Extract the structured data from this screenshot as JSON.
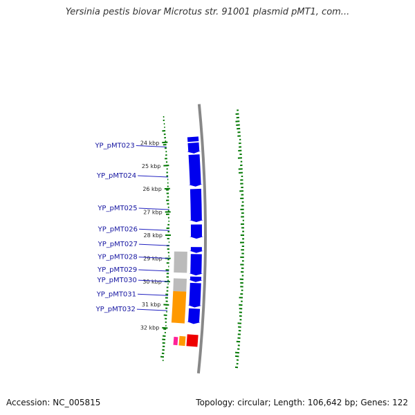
{
  "title": "Yersinia pestis biovar Microtus str. 91001 plasmid pMT1, com...",
  "accession_text": "Accession: NC_005815",
  "summary_text": "Topology: circular; Length: 106,642 bp; Genes: 122",
  "topology": "circular",
  "length_bp": 106642,
  "gene_count": 122,
  "colors": {
    "forward_cds": "#0000ee",
    "other_cds": "#bbbbbb",
    "orange_feature": "#ff9900",
    "backbone": "#888888",
    "gc_ticks": "#007700",
    "red_feature": "#ee0000",
    "magenta_feature": "#ff2299",
    "label": "#1414a0"
  },
  "ticks": [
    {
      "kbp": 24,
      "label": "24 kbp"
    },
    {
      "kbp": 25,
      "label": "25 kbp"
    },
    {
      "kbp": 26,
      "label": "26 kbp"
    },
    {
      "kbp": 27,
      "label": "27 kbp"
    },
    {
      "kbp": 28,
      "label": "28 kbp"
    },
    {
      "kbp": 29,
      "label": "29 kbp"
    },
    {
      "kbp": 30,
      "label": "30 kbp"
    },
    {
      "kbp": 31,
      "label": "31 kbp"
    },
    {
      "kbp": 32,
      "label": "32 kbp"
    }
  ],
  "genes": [
    {
      "label": "YP_pMT023",
      "kbp": 24.2
    },
    {
      "label": "YP_pMT024",
      "kbp": 25.5
    },
    {
      "label": "YP_pMT025",
      "kbp": 26.9
    },
    {
      "label": "YP_pMT026",
      "kbp": 27.8
    },
    {
      "label": "YP_pMT027",
      "kbp": 28.45
    },
    {
      "label": "YP_pMT028",
      "kbp": 29.0
    },
    {
      "label": "YP_pMT029",
      "kbp": 29.55
    },
    {
      "label": "YP_pMT030",
      "kbp": 30.0
    },
    {
      "label": "YP_pMT031",
      "kbp": 30.6
    },
    {
      "label": "YP_pMT032",
      "kbp": 31.25
    }
  ],
  "features": [
    {
      "ring": "forward",
      "start": 23.85,
      "end": 24.05,
      "color": "forward_cds",
      "arrow": false
    },
    {
      "ring": "forward",
      "start": 24.1,
      "end": 24.55,
      "color": "forward_cds",
      "arrow": true
    },
    {
      "ring": "forward",
      "start": 24.6,
      "end": 25.95,
      "color": "forward_cds",
      "arrow": true
    },
    {
      "ring": "forward",
      "start": 26.05,
      "end": 27.45,
      "color": "forward_cds",
      "arrow": true
    },
    {
      "ring": "forward",
      "start": 27.55,
      "end": 28.15,
      "color": "forward_cds",
      "arrow": true
    },
    {
      "ring": "forward",
      "start": 28.5,
      "end": 28.75,
      "color": "forward_cds",
      "arrow": true
    },
    {
      "ring": "forward",
      "start": 28.8,
      "end": 29.7,
      "color": "forward_cds",
      "arrow": true
    },
    {
      "ring": "forward",
      "start": 29.75,
      "end": 29.98,
      "color": "forward_cds",
      "arrow": true
    },
    {
      "ring": "forward",
      "start": 30.02,
      "end": 31.05,
      "color": "forward_cds",
      "arrow": true
    },
    {
      "ring": "forward",
      "start": 31.1,
      "end": 31.75,
      "color": "forward_cds",
      "arrow": true
    },
    {
      "ring": "reverse",
      "start": 28.7,
      "end": 29.6,
      "color": "other_cds",
      "arrow": false
    },
    {
      "ring": "reverse",
      "start": 29.85,
      "end": 30.4,
      "color": "other_cds",
      "arrow": false
    },
    {
      "ring": "reverse",
      "start": 30.4,
      "end": 31.75,
      "color": "orange_feature",
      "arrow": false
    },
    {
      "ring": "outer",
      "start": 32.2,
      "end": 32.7,
      "color": "red_feature",
      "arrow": false
    },
    {
      "ring": "outer2",
      "start": 32.3,
      "end": 32.7,
      "color": "orange_feature",
      "arrow": false
    },
    {
      "ring": "outer3",
      "start": 32.35,
      "end": 32.7,
      "color": "magenta_feature",
      "arrow": false
    }
  ]
}
